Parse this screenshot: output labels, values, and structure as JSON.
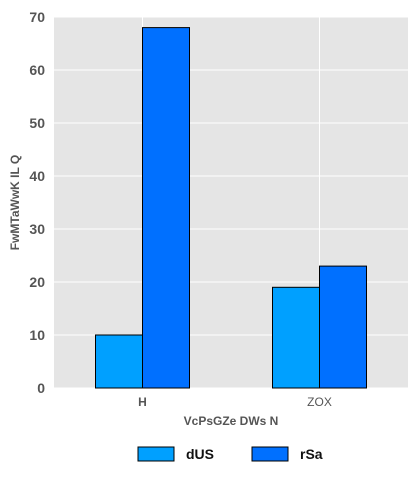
{
  "chart_data": {
    "type": "bar",
    "categories": [
      "H",
      "ZOX"
    ],
    "series": [
      {
        "name": "dUS",
        "values": [
          10,
          19
        ],
        "color": "#00a0ff"
      },
      {
        "name": "rSa",
        "values": [
          68,
          23
        ],
        "color": "#0070ff"
      }
    ],
    "xlabel": "VcPsGZe DWs N",
    "ylabel": "FwMTaWwK IL Q",
    "ylim": [
      0,
      70
    ],
    "yticks": [
      0,
      10,
      20,
      30,
      40,
      50,
      60,
      70
    ],
    "grid": true,
    "legend_position": "bottom",
    "background": "#e5e5e5",
    "bar_edge_color": "#000000"
  }
}
